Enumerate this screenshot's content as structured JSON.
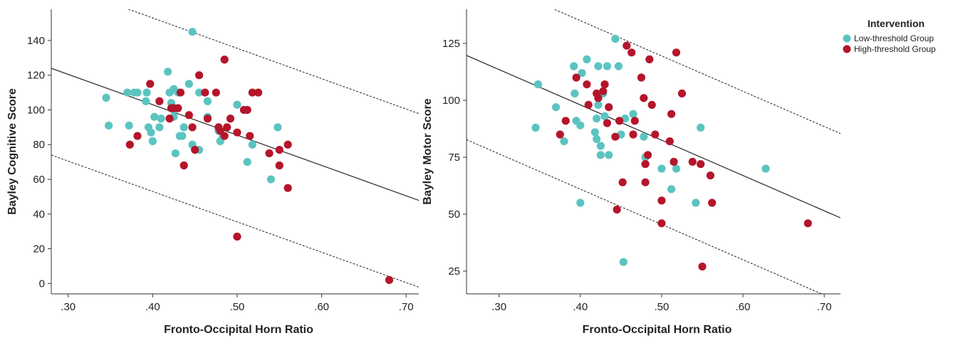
{
  "legend": {
    "title": "Intervention",
    "items": [
      {
        "label": "Low-threshold Group",
        "color": "#5bc4c0"
      },
      {
        "label": "High-threshold Group",
        "color": "#b5152b"
      }
    ]
  },
  "chart_data": [
    {
      "type": "scatter",
      "xlabel": "Fronto-Occipital Horn Ratio",
      "ylabel": "Bayley Cognitive Score",
      "xlim": [
        0.28,
        0.715
      ],
      "ylim": [
        -6,
        158
      ],
      "xticks": [
        0.3,
        0.4,
        0.5,
        0.6,
        0.7
      ],
      "xtick_labels": [
        ".30",
        ".40",
        ".50",
        ".60",
        ".70"
      ],
      "yticks": [
        0,
        20,
        40,
        60,
        80,
        100,
        120,
        140
      ],
      "ytick_labels": [
        "0",
        "20",
        "40",
        "60",
        "80",
        "100",
        "120",
        "140"
      ],
      "fit_line": {
        "slope": -175,
        "intercept": 173
      },
      "prediction_band": {
        "upper_intercept": 223,
        "lower_intercept": 123
      },
      "series": [
        {
          "name": "Low-threshold Group",
          "color": "#5bc4c0",
          "points": [
            [
              0.345,
              107
            ],
            [
              0.348,
              91
            ],
            [
              0.37,
              110
            ],
            [
              0.372,
              91
            ],
            [
              0.378,
              110
            ],
            [
              0.382,
              110
            ],
            [
              0.392,
              105
            ],
            [
              0.393,
              110
            ],
            [
              0.395,
              90
            ],
            [
              0.398,
              87
            ],
            [
              0.4,
              82
            ],
            [
              0.402,
              96
            ],
            [
              0.408,
              90
            ],
            [
              0.41,
              95
            ],
            [
              0.418,
              122
            ],
            [
              0.42,
              110
            ],
            [
              0.422,
              104
            ],
            [
              0.425,
              100
            ],
            [
              0.425,
              96
            ],
            [
              0.425,
              112
            ],
            [
              0.427,
              75
            ],
            [
              0.43,
              110
            ],
            [
              0.432,
              85
            ],
            [
              0.435,
              85
            ],
            [
              0.437,
              90
            ],
            [
              0.443,
              115
            ],
            [
              0.447,
              145
            ],
            [
              0.447,
              80
            ],
            [
              0.455,
              110
            ],
            [
              0.455,
              77
            ],
            [
              0.465,
              105
            ],
            [
              0.478,
              88
            ],
            [
              0.48,
              82
            ],
            [
              0.483,
              85
            ],
            [
              0.5,
              103
            ],
            [
              0.512,
              70
            ],
            [
              0.518,
              80
            ],
            [
              0.54,
              60
            ],
            [
              0.548,
              90
            ],
            [
              0.465,
              96
            ]
          ]
        },
        {
          "name": "High-threshold Group",
          "color": "#b5152b",
          "points": [
            [
              0.373,
              80
            ],
            [
              0.382,
              85
            ],
            [
              0.397,
              115
            ],
            [
              0.408,
              105
            ],
            [
              0.42,
              95
            ],
            [
              0.422,
              101
            ],
            [
              0.425,
              101
            ],
            [
              0.43,
              101
            ],
            [
              0.433,
              110
            ],
            [
              0.437,
              68
            ],
            [
              0.443,
              97
            ],
            [
              0.447,
              90
            ],
            [
              0.45,
              77
            ],
            [
              0.455,
              120
            ],
            [
              0.462,
              110
            ],
            [
              0.465,
              95
            ],
            [
              0.475,
              110
            ],
            [
              0.478,
              90
            ],
            [
              0.48,
              88
            ],
            [
              0.485,
              129
            ],
            [
              0.485,
              85
            ],
            [
              0.488,
              90
            ],
            [
              0.492,
              95
            ],
            [
              0.5,
              27
            ],
            [
              0.5,
              87
            ],
            [
              0.508,
              100
            ],
            [
              0.512,
              100
            ],
            [
              0.515,
              85
            ],
            [
              0.518,
              110
            ],
            [
              0.525,
              110
            ],
            [
              0.538,
              75
            ],
            [
              0.55,
              68
            ],
            [
              0.55,
              77
            ],
            [
              0.56,
              55
            ],
            [
              0.56,
              80
            ],
            [
              0.68,
              2
            ]
          ]
        }
      ]
    },
    {
      "type": "scatter",
      "xlabel": "Fronto-Occipital Horn Ratio",
      "ylabel": "Bayley Motor Score",
      "xlim": [
        0.26,
        0.72
      ],
      "ylim": [
        15,
        140
      ],
      "xticks": [
        0.3,
        0.4,
        0.5,
        0.6,
        0.7
      ],
      "xtick_labels": [
        ".30",
        ".40",
        ".50",
        ".60",
        ".70"
      ],
      "yticks": [
        25,
        50,
        75,
        100,
        125
      ],
      "ytick_labels": [
        "25",
        "50",
        "75",
        "100",
        "125"
      ],
      "fit_line": {
        "slope": -155,
        "intercept": 160
      },
      "prediction_band": {
        "upper_intercept": 197,
        "lower_intercept": 123
      },
      "series": [
        {
          "name": "Low-threshold Group",
          "color": "#5bc4c0",
          "points": [
            [
              0.345,
              88
            ],
            [
              0.348,
              107
            ],
            [
              0.37,
              97
            ],
            [
              0.38,
              82
            ],
            [
              0.392,
              115
            ],
            [
              0.393,
              103
            ],
            [
              0.395,
              91
            ],
            [
              0.4,
              89
            ],
            [
              0.402,
              112
            ],
            [
              0.408,
              118
            ],
            [
              0.4,
              55
            ],
            [
              0.418,
              86
            ],
            [
              0.42,
              92
            ],
            [
              0.42,
              83
            ],
            [
              0.422,
              115
            ],
            [
              0.422,
              98
            ],
            [
              0.425,
              80
            ],
            [
              0.425,
              76
            ],
            [
              0.428,
              103
            ],
            [
              0.43,
              93
            ],
            [
              0.433,
              115
            ],
            [
              0.435,
              76
            ],
            [
              0.443,
              127
            ],
            [
              0.447,
              115
            ],
            [
              0.45,
              85
            ],
            [
              0.453,
              29
            ],
            [
              0.455,
              92
            ],
            [
              0.465,
              94
            ],
            [
              0.478,
              84
            ],
            [
              0.48,
              75
            ],
            [
              0.5,
              70
            ],
            [
              0.512,
              61
            ],
            [
              0.518,
              70
            ],
            [
              0.542,
              55
            ],
            [
              0.548,
              88
            ],
            [
              0.628,
              70
            ]
          ]
        },
        {
          "name": "High-threshold Group",
          "color": "#b5152b",
          "points": [
            [
              0.375,
              85
            ],
            [
              0.382,
              91
            ],
            [
              0.395,
              110
            ],
            [
              0.408,
              107
            ],
            [
              0.41,
              98
            ],
            [
              0.42,
              103
            ],
            [
              0.422,
              101
            ],
            [
              0.428,
              104
            ],
            [
              0.43,
              107
            ],
            [
              0.433,
              90
            ],
            [
              0.435,
              97
            ],
            [
              0.443,
              84
            ],
            [
              0.445,
              52
            ],
            [
              0.448,
              91
            ],
            [
              0.452,
              64
            ],
            [
              0.457,
              124
            ],
            [
              0.463,
              121
            ],
            [
              0.465,
              85
            ],
            [
              0.467,
              91
            ],
            [
              0.475,
              110
            ],
            [
              0.478,
              101
            ],
            [
              0.48,
              72
            ],
            [
              0.48,
              64
            ],
            [
              0.483,
              76
            ],
            [
              0.485,
              118
            ],
            [
              0.488,
              98
            ],
            [
              0.492,
              85
            ],
            [
              0.5,
              56
            ],
            [
              0.5,
              46
            ],
            [
              0.51,
              82
            ],
            [
              0.512,
              94
            ],
            [
              0.515,
              73
            ],
            [
              0.518,
              121
            ],
            [
              0.525,
              103
            ],
            [
              0.538,
              73
            ],
            [
              0.548,
              72
            ],
            [
              0.55,
              27
            ],
            [
              0.56,
              67
            ],
            [
              0.562,
              55
            ],
            [
              0.68,
              46
            ]
          ]
        }
      ]
    }
  ]
}
